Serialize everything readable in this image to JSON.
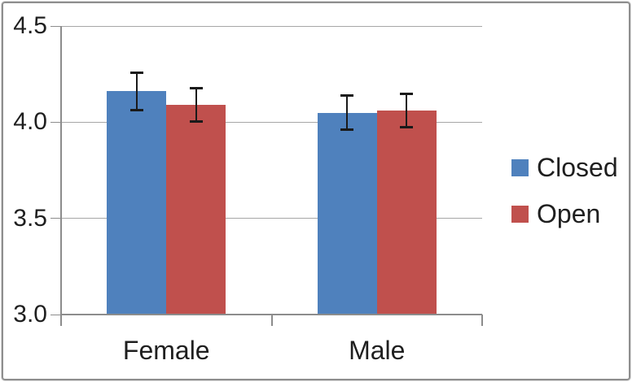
{
  "chart_data": {
    "type": "bar",
    "title": "",
    "categories": [
      "Female",
      "Male"
    ],
    "series": [
      {
        "name": "Closed",
        "color": "#4F81BD",
        "values": [
          4.16,
          4.05
        ],
        "errors": [
          0.1,
          0.09
        ]
      },
      {
        "name": "Open",
        "color": "#C0504D",
        "values": [
          4.09,
          4.06
        ],
        "errors": [
          0.09,
          0.09
        ]
      }
    ],
    "ylim": [
      3.0,
      4.5
    ],
    "yticks": [
      3.0,
      3.5,
      4.0,
      4.5
    ],
    "ytick_labels": [
      "3.0",
      "3.5",
      "4.0",
      "4.5"
    ],
    "xlabel": "",
    "ylabel": "",
    "grid": true,
    "error_bars": true,
    "legend_position": "right",
    "colors": {
      "axis": "#8c8c8c",
      "gridline": "#a6a6a6",
      "error_bar": "#1a1a1a",
      "frame_border": "#8e8e8e",
      "background": "#ffffff"
    }
  }
}
